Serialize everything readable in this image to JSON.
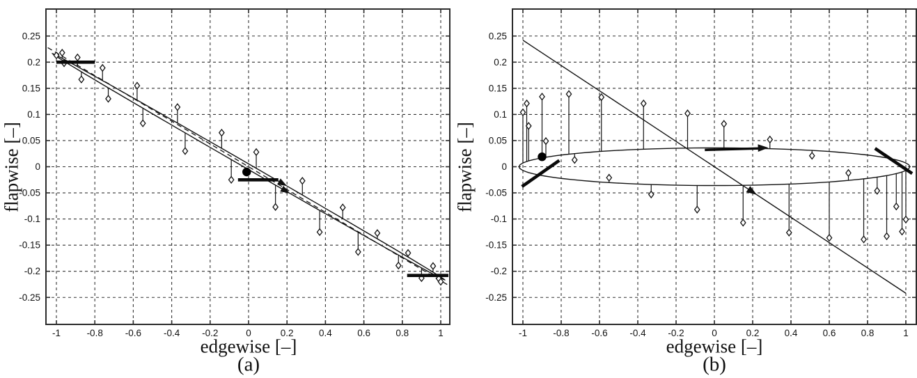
{
  "figure": {
    "background": "#ffffff",
    "ink": "#111111",
    "grid_color": "#333333",
    "spine_color": "#2b2b2b"
  },
  "chart_data": [
    {
      "id": "a",
      "type": "scatter",
      "caption": "(a)",
      "xlabel": "edgewise [–]",
      "ylabel": "flapwise [–]",
      "marker": "diamond",
      "grid": true,
      "xlim": [
        -1.05,
        1.05
      ],
      "ylim": [
        -0.3,
        0.3
      ],
      "xtick_values": [
        -1,
        -0.8,
        -0.6,
        -0.4,
        -0.2,
        0,
        0.2,
        0.4,
        0.6,
        0.8,
        1
      ],
      "xtick_labels": [
        "-1",
        "-0.8",
        "-0.6",
        "-0.4",
        "-0.2",
        "0",
        "0.2",
        "0.4",
        "0.6",
        "0.8",
        "1"
      ],
      "ytick_values": [
        -0.25,
        -0.2,
        -0.15,
        -0.1,
        -0.05,
        0,
        0.05,
        0.1,
        0.15,
        0.2,
        0.25
      ],
      "ytick_labels": [
        "-0.25",
        "-0.2",
        "-0.15",
        "-0.1",
        "-0.05",
        "0",
        "0.05",
        "0.1",
        "0.15",
        "0.2",
        "0.25"
      ],
      "orbit_ellipse": {
        "cx": 0,
        "cy": 0,
        "rx": 1.02,
        "ry": 0.0055,
        "shear": -0.212
      },
      "axis_line": {
        "slope": -0.218,
        "x_extent": 1.045,
        "style": "dashed"
      },
      "direction_arrowheads": [
        {
          "x": 0.2,
          "edge": 1
        },
        {
          "x": 0.215,
          "edge": -1
        }
      ],
      "points": [
        [
          -1.0,
          0.213
        ],
        [
          -0.97,
          0.218
        ],
        [
          -0.96,
          0.198
        ],
        [
          -0.89,
          0.209
        ],
        [
          -0.87,
          0.167
        ],
        [
          -0.76,
          0.189
        ],
        [
          -0.73,
          0.13
        ],
        [
          -0.58,
          0.155
        ],
        [
          -0.55,
          0.083
        ],
        [
          -0.37,
          0.114
        ],
        [
          -0.33,
          0.03
        ],
        [
          -0.14,
          0.065
        ],
        [
          -0.09,
          -0.025
        ],
        [
          0.04,
          0.028
        ],
        [
          0.14,
          -0.077
        ],
        [
          0.28,
          -0.027
        ],
        [
          0.37,
          -0.125
        ],
        [
          0.49,
          -0.078
        ],
        [
          0.57,
          -0.163
        ],
        [
          0.67,
          -0.127
        ],
        [
          0.78,
          -0.189
        ],
        [
          0.83,
          -0.165
        ],
        [
          0.9,
          -0.213
        ],
        [
          0.96,
          -0.19
        ],
        [
          0.99,
          -0.214
        ],
        [
          1.0,
          -0.22
        ]
      ],
      "marked_point": [
        -0.01,
        -0.01
      ],
      "thick_segments": [
        [
          [
            -1.0,
            0.2
          ],
          [
            -0.8,
            0.2
          ]
        ],
        [
          [
            -0.055,
            -0.025
          ],
          [
            0.155,
            -0.025
          ]
        ],
        [
          [
            0.825,
            -0.208
          ],
          [
            1.04,
            -0.208
          ]
        ]
      ]
    },
    {
      "id": "b",
      "type": "scatter",
      "caption": "(b)",
      "xlabel": "edgewise [–]",
      "ylabel": "flapwise [–]",
      "marker": "diamond",
      "grid": true,
      "xlim": [
        -1.05,
        1.05
      ],
      "ylim": [
        -0.3,
        0.3
      ],
      "xtick_values": [
        -1,
        -0.8,
        -0.6,
        -0.4,
        -0.2,
        0,
        0.2,
        0.4,
        0.6,
        0.8,
        1
      ],
      "xtick_labels": [
        "-1",
        "-0.8",
        "-0.6",
        "-0.4",
        "-0.2",
        "0",
        "0.2",
        "0.4",
        "0.6",
        "0.8",
        "1"
      ],
      "ytick_values": [
        -0.25,
        -0.2,
        -0.15,
        -0.1,
        -0.05,
        0,
        0.05,
        0.1,
        0.15,
        0.2,
        0.25
      ],
      "ytick_labels": [
        "-0.25",
        "-0.2",
        "-0.15",
        "-0.1",
        "-0.05",
        "0",
        "0.05",
        "0.1",
        "0.15",
        "0.2",
        "0.25"
      ],
      "orbit_ellipse": {
        "cx": 0,
        "cy": 0,
        "rx": 1.02,
        "ry": 0.036,
        "shear": 0
      },
      "axis_line": {
        "slope": -0.242,
        "x_extent": 1.0,
        "style": "solid",
        "arrowhead_x": 0.222
      },
      "direction_arrow": {
        "from": [
          -0.05,
          0.032
        ],
        "to": [
          0.235,
          0.035
        ]
      },
      "points": [
        [
          -1.0,
          0.104
        ],
        [
          -0.98,
          0.121
        ],
        [
          -0.97,
          0.078
        ],
        [
          -0.9,
          0.134
        ],
        [
          -0.88,
          0.049
        ],
        [
          -0.76,
          0.139
        ],
        [
          -0.73,
          0.013
        ],
        [
          -0.59,
          0.133
        ],
        [
          -0.55,
          -0.021
        ],
        [
          -0.37,
          0.121
        ],
        [
          -0.33,
          -0.053
        ],
        [
          -0.14,
          0.102
        ],
        [
          -0.09,
          -0.082
        ],
        [
          0.05,
          0.082
        ],
        [
          0.15,
          -0.107
        ],
        [
          0.29,
          0.052
        ],
        [
          0.39,
          -0.126
        ],
        [
          0.51,
          0.021
        ],
        [
          0.6,
          -0.136
        ],
        [
          0.7,
          -0.012
        ],
        [
          0.78,
          -0.139
        ],
        [
          0.85,
          -0.046
        ],
        [
          0.9,
          -0.133
        ],
        [
          0.95,
          -0.076
        ],
        [
          0.98,
          -0.124
        ],
        [
          1.0,
          -0.101
        ]
      ],
      "marked_point": [
        -0.9,
        0.019
      ],
      "thick_segments": [
        [
          [
            -1.005,
            -0.038
          ],
          [
            -0.81,
            0.012
          ]
        ],
        [
          [
            0.839,
            0.035
          ],
          [
            1.033,
            -0.013
          ]
        ]
      ]
    }
  ]
}
